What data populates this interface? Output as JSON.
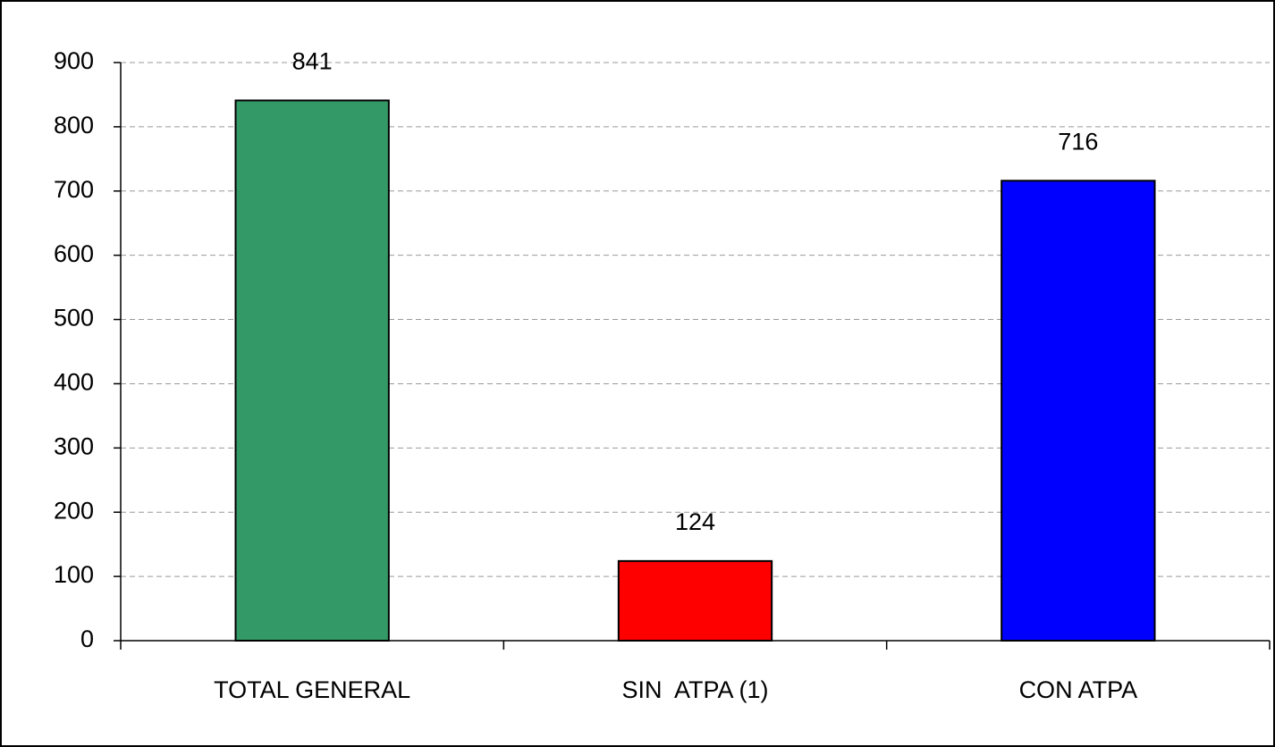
{
  "chart_data": {
    "type": "bar",
    "categories": [
      "TOTAL GENERAL",
      "SIN  ATPA (1)",
      "CON ATPA"
    ],
    "values": [
      841,
      124,
      716
    ],
    "colors": [
      "#339966",
      "#ff0000",
      "#0000ff"
    ],
    "ylim": [
      0,
      900
    ],
    "yticks": [
      0,
      100,
      200,
      300,
      400,
      500,
      600,
      700,
      800,
      900
    ],
    "grid": true
  }
}
